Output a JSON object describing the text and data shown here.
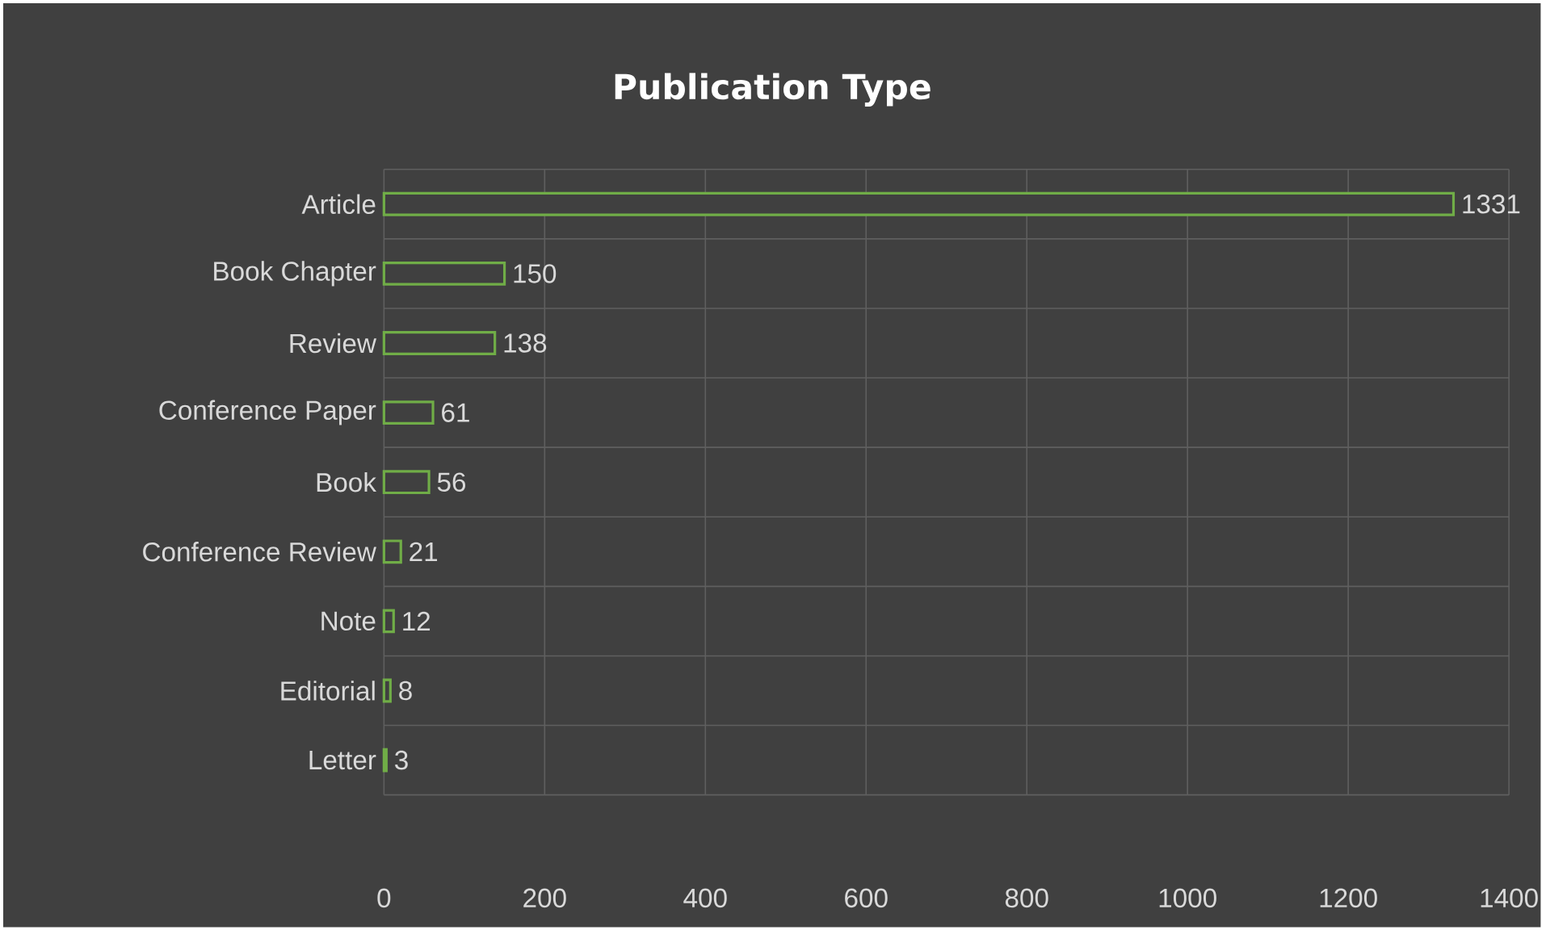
{
  "chart_data": {
    "type": "bar",
    "orientation": "horizontal",
    "title": "Publication Type",
    "categories": [
      "Article",
      "Book Chapter",
      "Review",
      "Conference Paper",
      "Book",
      "Conference Review",
      "Note",
      "Editorial",
      "Letter"
    ],
    "values": [
      1331,
      150,
      138,
      61,
      56,
      21,
      12,
      8,
      3
    ],
    "color": "#70ad47",
    "xlim": [
      0,
      1400
    ],
    "xticks": [
      0,
      200,
      400,
      600,
      800,
      1000,
      1200,
      1400
    ],
    "grid": true,
    "data_labels": true
  }
}
